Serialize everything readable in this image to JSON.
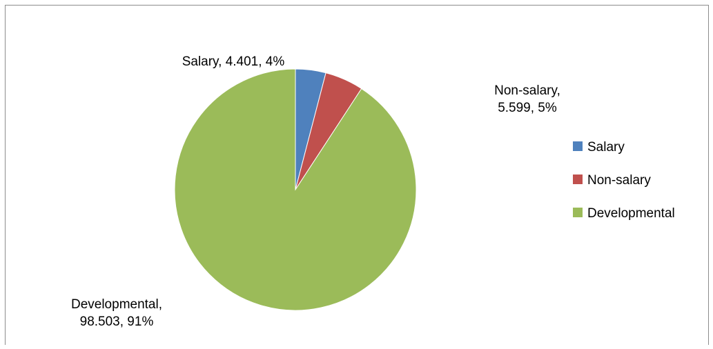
{
  "chart_data": {
    "type": "pie",
    "title": "",
    "slices": [
      {
        "label": "Salary",
        "value": 4.401,
        "percent": "4%",
        "color": "#4f81bd",
        "data_label": [
          "Salary, 4.401, 4%"
        ]
      },
      {
        "label": "Non-salary",
        "value": 5.599,
        "percent": "5%",
        "color": "#c0504d",
        "data_label": [
          "Non-salary,",
          "5.599, 5%"
        ]
      },
      {
        "label": "Developmental",
        "value": 98.503,
        "percent": "91%",
        "color": "#9bbb59",
        "data_label": [
          "Developmental,",
          "98.503, 91%"
        ]
      }
    ],
    "legend": {
      "position": "right",
      "entries": [
        "Salary",
        "Non-salary",
        "Developmental"
      ]
    }
  }
}
